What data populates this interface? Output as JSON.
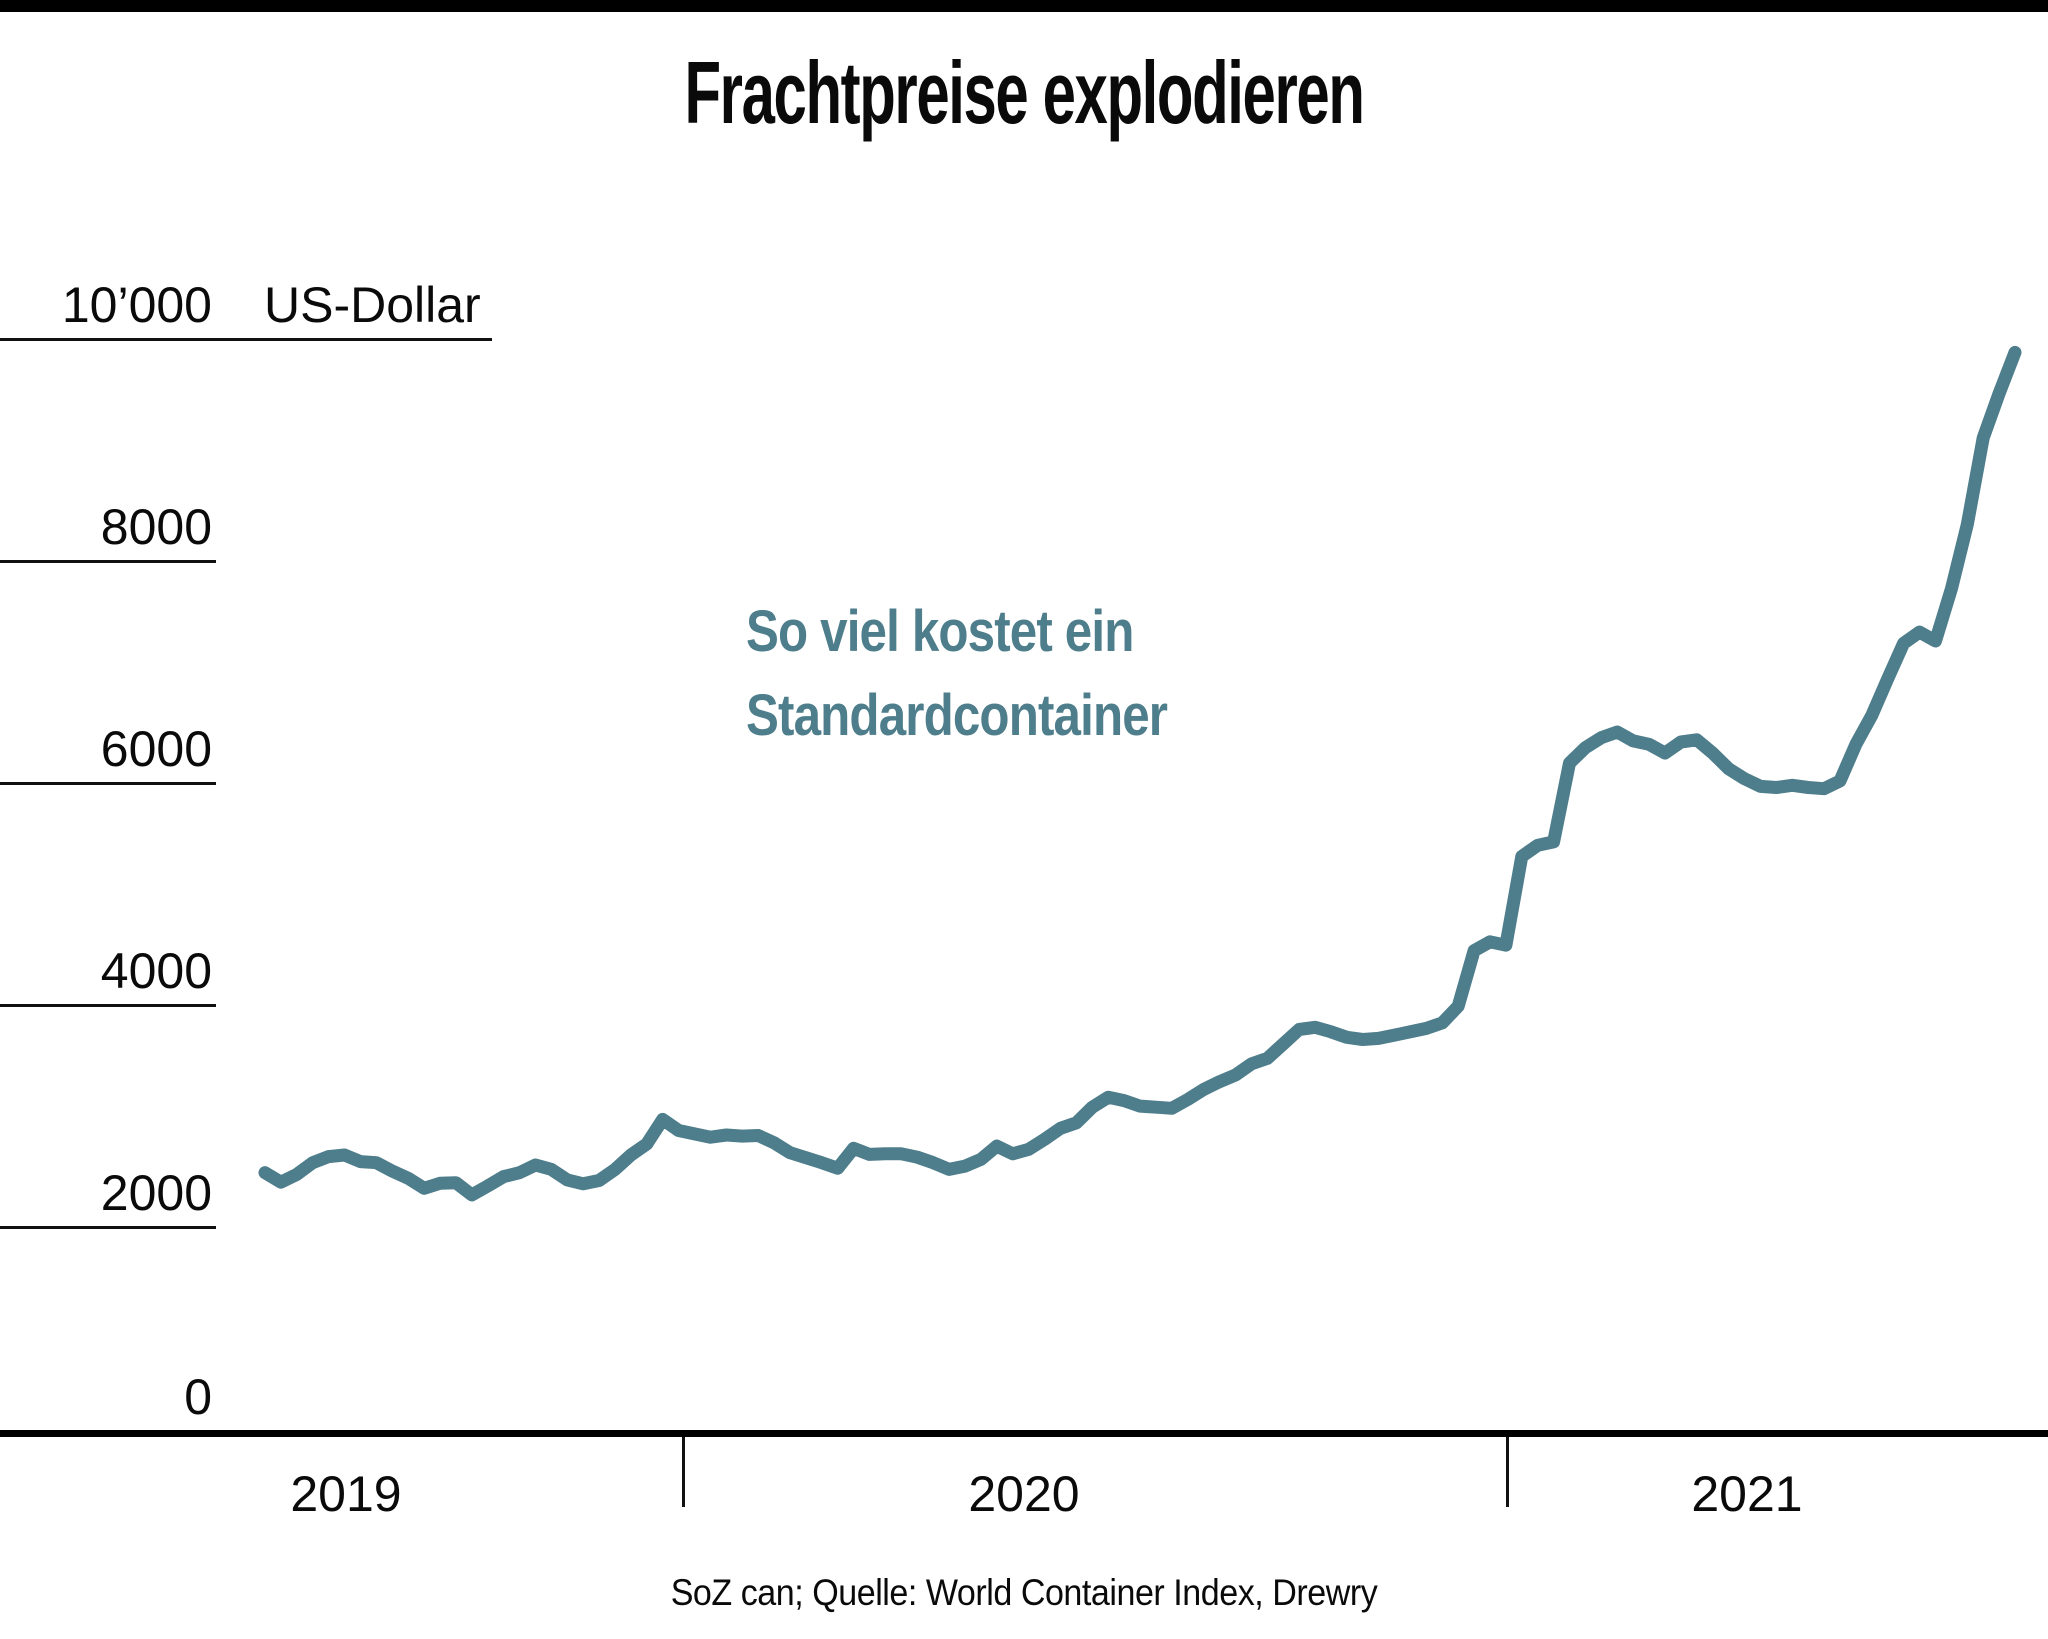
{
  "page": {
    "title": "Frachtpreise explodieren"
  },
  "colors": {
    "accent_teal": "#4e7d8b",
    "axis_black": "#111111",
    "background": "#ffffff"
  },
  "y_axis": {
    "unit_label": "US-Dollar",
    "ticks": [
      {
        "label": "10’000",
        "value": 10000
      },
      {
        "label": "8000",
        "value": 8000
      },
      {
        "label": "6000",
        "value": 6000
      },
      {
        "label": "4000",
        "value": 4000
      },
      {
        "label": "2000",
        "value": 2000
      },
      {
        "label": "0",
        "value": 0
      }
    ]
  },
  "x_axis": {
    "years": [
      "2019",
      "2020",
      "2021"
    ]
  },
  "annotation": {
    "line1": "So viel kostet ein",
    "line2": "Standardcontainer"
  },
  "source": "SoZ can; Quelle: World Container Index, Drewry",
  "chart_data": {
    "type": "line",
    "title": "Frachtpreise explodieren",
    "ylabel": "US-Dollar",
    "ylim": [
      0,
      10000
    ],
    "y_ticks": [
      0,
      2000,
      4000,
      6000,
      8000,
      10000
    ],
    "x_year_labels": [
      "2019",
      "2020",
      "2021"
    ],
    "x_note": "weekly price of a standard container (World Container Index), mid-2019 to August 2021; year ticks mark the start of 2020 and 2021",
    "year_tick_indices": {
      "2020": 26.2,
      "2021": 78
    },
    "legend_position": "none",
    "grid": "y-only, short left stubs",
    "series": [
      {
        "name": "So viel kostet ein Standardcontainer",
        "color": "#4e7d8b",
        "values": [
          2480,
          2395,
          2465,
          2570,
          2625,
          2640,
          2580,
          2570,
          2495,
          2430,
          2340,
          2385,
          2390,
          2280,
          2360,
          2445,
          2480,
          2550,
          2510,
          2415,
          2380,
          2410,
          2510,
          2640,
          2740,
          2960,
          2860,
          2830,
          2800,
          2820,
          2810,
          2815,
          2750,
          2660,
          2615,
          2570,
          2520,
          2700,
          2645,
          2650,
          2650,
          2620,
          2570,
          2510,
          2540,
          2600,
          2720,
          2650,
          2690,
          2780,
          2880,
          2930,
          3070,
          3160,
          3130,
          3080,
          3070,
          3060,
          3140,
          3230,
          3300,
          3360,
          3460,
          3510,
          3640,
          3770,
          3790,
          3750,
          3700,
          3680,
          3690,
          3720,
          3750,
          3780,
          3830,
          3980,
          4480,
          4560,
          4530,
          5330,
          5430,
          5460,
          6170,
          6310,
          6400,
          6450,
          6370,
          6340,
          6260,
          6360,
          6380,
          6260,
          6120,
          6030,
          5960,
          5950,
          5970,
          5950,
          5940,
          6010,
          6340,
          6600,
          6930,
          7250,
          7350,
          7270,
          7740,
          8320,
          9100,
          9500,
          9870
        ]
      }
    ]
  }
}
